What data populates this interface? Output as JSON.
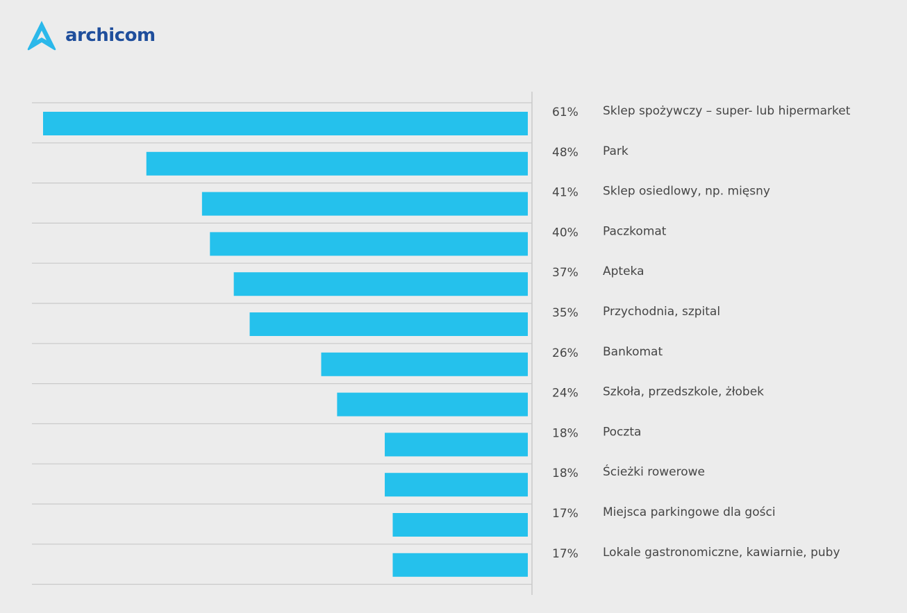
{
  "brand": {
    "name": "archicom",
    "logo_color": "#2bb8ea",
    "text_color": "#1f4e9c"
  },
  "colors": {
    "bar": "#25c1ec",
    "grid": "#c9c9c9",
    "background": "#ececec",
    "text": "#454545"
  },
  "chart_data": {
    "type": "bar",
    "orientation": "horizontal",
    "direction": "bars extend leftward from a vertical baseline",
    "categories": [
      "Sklep spożywczy – super- lub hipermarket",
      "Park",
      "Sklep osiedlowy, np. mięsny",
      "Paczkomat",
      "Apteka",
      "Przychodnia, szpital",
      "Bankomat",
      "Szkoła, przedszkole, żłobek",
      "Poczta",
      "Ścieżki rowerowe",
      "Miejsca parkingowe dla gości",
      "Lokale gastronomiczne, kawiarnie, puby"
    ],
    "values": [
      61,
      48,
      41,
      40,
      37,
      35,
      26,
      24,
      18,
      18,
      17,
      17
    ],
    "value_labels": [
      "61%",
      "48%",
      "41%",
      "40%",
      "37%",
      "35%",
      "26%",
      "24%",
      "18%",
      "18%",
      "17%",
      "17%"
    ],
    "unit": "%",
    "xlim": [
      0,
      61
    ],
    "title": "",
    "xlabel": "",
    "ylabel": "",
    "grid": true,
    "legend": "none"
  }
}
